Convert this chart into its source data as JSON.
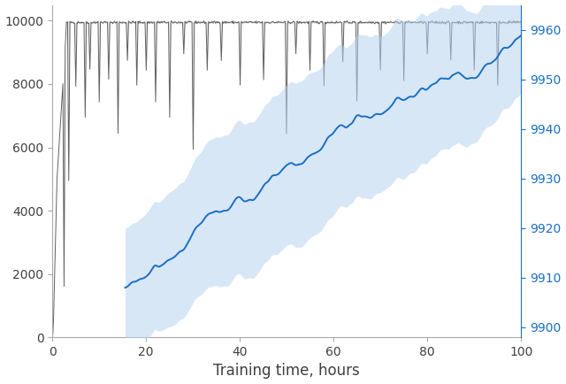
{
  "xlim": [
    0,
    100
  ],
  "ylim_left": [
    0,
    10500
  ],
  "ylim_right": [
    9898,
    9965
  ],
  "yticks_left": [
    0,
    2000,
    4000,
    6000,
    8000,
    10000
  ],
  "yticks_right": [
    9900,
    9910,
    9920,
    9930,
    9940,
    9950,
    9960
  ],
  "xticks": [
    0,
    20,
    40,
    60,
    80,
    100
  ],
  "xlabel": "Training time, hours",
  "gray_color": "#606060",
  "gray_fill_color": "#d8d8d8",
  "blue_color": "#1a6fc4",
  "blue_fill_color": "#b8d4f0",
  "figsize": [
    6.4,
    4.34
  ],
  "dpi": 100,
  "seed": 42,
  "n_points": 800
}
